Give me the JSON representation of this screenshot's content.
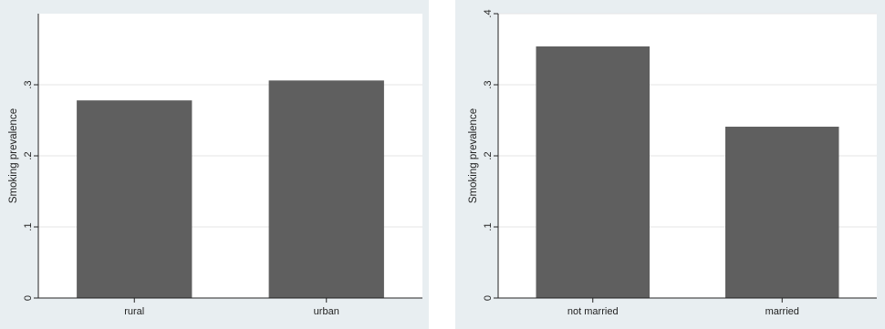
{
  "colors": {
    "bar": "#5f5f5f",
    "plot_background": "#ffffff",
    "outer_background": "#e8eef1",
    "gridline": "#e6e6e6",
    "axis": "#222222"
  },
  "chart_data": [
    {
      "type": "bar",
      "categories": [
        "rural",
        "urban"
      ],
      "values": [
        0.278,
        0.306
      ],
      "xlabel": "",
      "ylabel": "Smoking prevalence",
      "ylim": [
        0,
        0.4
      ],
      "yticks": [
        0,
        0.1,
        0.2,
        0.3
      ],
      "ytick_labels": [
        "0",
        ".1",
        ".2",
        ".3"
      ],
      "grid": true
    },
    {
      "type": "bar",
      "categories": [
        "not married",
        "married"
      ],
      "values": [
        0.354,
        0.241
      ],
      "xlabel": "",
      "ylabel": "Smoking prevalence",
      "ylim": [
        0,
        0.4
      ],
      "yticks": [
        0,
        0.1,
        0.2,
        0.3,
        0.4
      ],
      "ytick_labels": [
        "0",
        ".1",
        ".2",
        ".3",
        ".4"
      ],
      "grid": true
    }
  ]
}
